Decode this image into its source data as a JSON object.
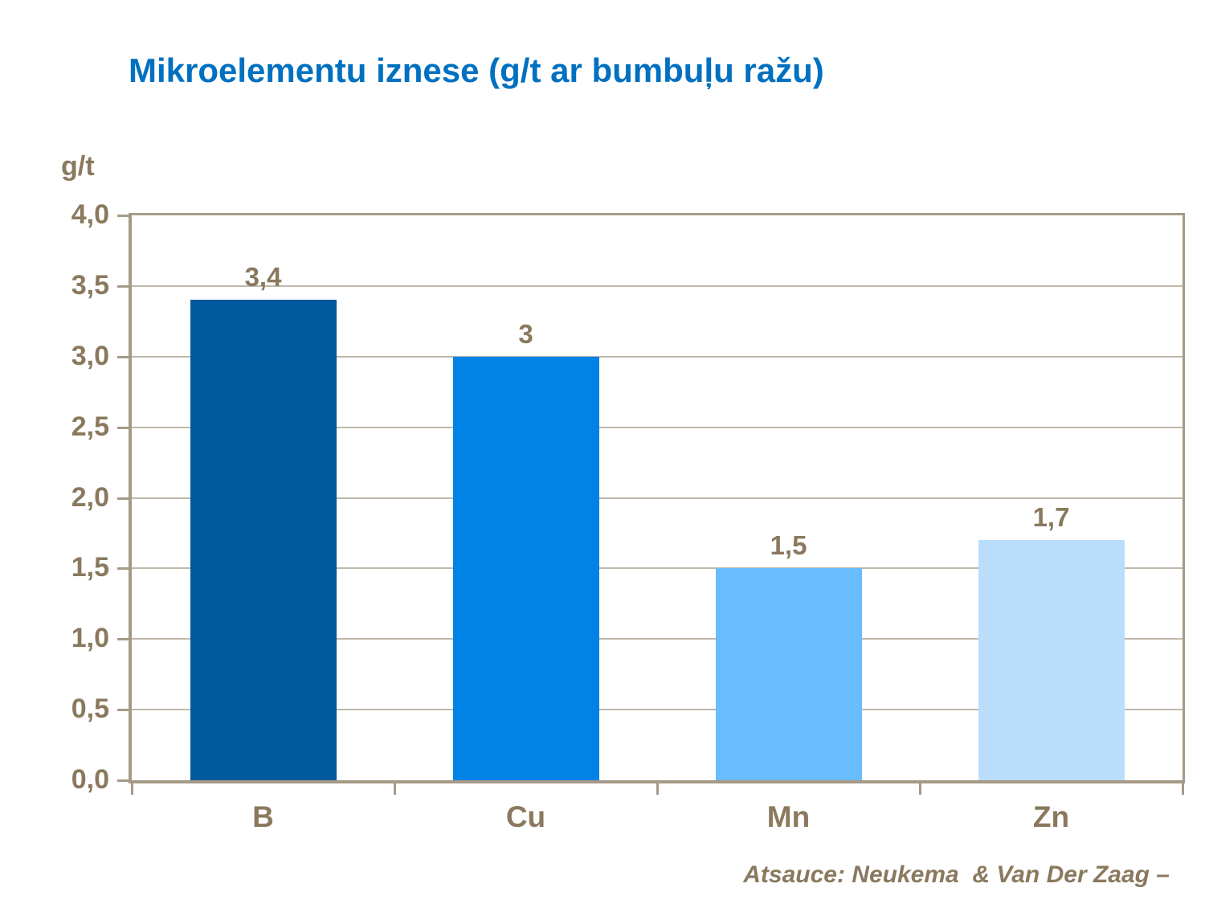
{
  "title": "Mikroelementu iznese (g/t ar bumbuļu ražu)",
  "source_note": "Atsauce: Neukema  & Van Der Zaag –",
  "colors": {
    "title_blue": "#0070C0",
    "text_taupe": "#8A795E",
    "axis_line": "#A69A87",
    "gridline": "#C0B8AB",
    "background": "#FFFFFF"
  },
  "chart_data": {
    "type": "bar",
    "title": "Mikroelementu iznese (g/t ar bumbuļu ražu)",
    "categories": [
      "B",
      "Cu",
      "Mn",
      "Zn"
    ],
    "values": [
      3.4,
      3,
      1.5,
      1.7
    ],
    "value_labels": [
      "3,4",
      "3",
      "1,5",
      "1,7"
    ],
    "bar_colors": [
      "#00589D",
      "#0082E6",
      "#69BDFF",
      "#B9DDFB"
    ],
    "xlabel": "",
    "ylabel": "g/t",
    "ylim": [
      0,
      4
    ],
    "ytick_step": 0.5,
    "ytick_labels": [
      "0,0",
      "0,5",
      "1,0",
      "1,5",
      "2,0",
      "2,5",
      "3,0",
      "3,5",
      "4,0"
    ],
    "grid": true,
    "legend": false
  }
}
